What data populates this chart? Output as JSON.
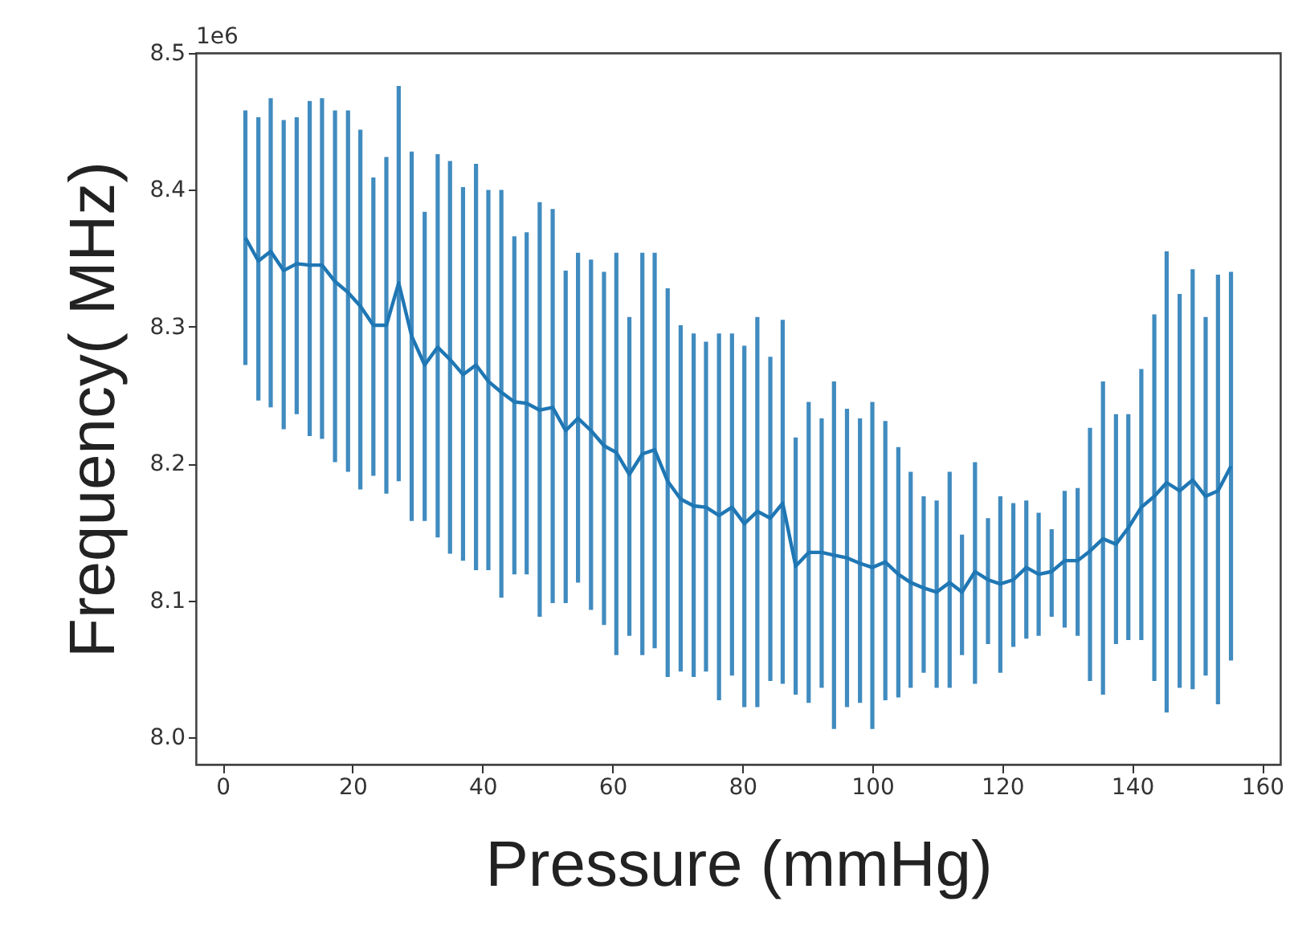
{
  "chart_data": {
    "type": "line",
    "xlabel": "Pressure (mmHg)",
    "ylabel": "Frequency( MHz)",
    "annotations": [
      "1e6"
    ],
    "x": [
      3.5,
      5.5,
      7.4,
      9.4,
      11.4,
      13.4,
      15.3,
      17.3,
      19.3,
      21.2,
      23.2,
      25.2,
      27.1,
      29.1,
      31.1,
      33.1,
      35.0,
      37.0,
      39.0,
      40.9,
      42.9,
      44.9,
      46.8,
      48.8,
      50.8,
      52.8,
      54.7,
      56.7,
      58.7,
      60.6,
      62.6,
      64.6,
      66.5,
      68.5,
      70.5,
      72.5,
      74.4,
      76.4,
      78.4,
      80.3,
      82.3,
      84.3,
      86.2,
      88.2,
      90.2,
      92.2,
      94.1,
      96.1,
      98.1,
      100.0,
      102.0,
      104.0,
      105.9,
      107.9,
      109.9,
      111.9,
      113.8,
      115.8,
      117.8,
      119.7,
      121.7,
      123.7,
      125.6,
      127.6,
      129.6,
      131.6,
      133.5,
      135.5,
      137.5,
      139.4,
      141.4,
      143.4,
      145.3,
      147.3,
      149.3,
      151.3,
      153.2,
      155.2
    ],
    "series": [
      {
        "color": "#1f77b4",
        "values": [
          8.365,
          8.348,
          8.355,
          8.341,
          8.346,
          8.345,
          8.345,
          8.333,
          8.325,
          8.315,
          8.301,
          8.301,
          8.332,
          8.293,
          8.272,
          8.285,
          8.276,
          8.265,
          8.272,
          8.26,
          8.252,
          8.245,
          8.244,
          8.239,
          8.241,
          8.224,
          8.233,
          8.224,
          8.213,
          8.208,
          8.192,
          8.207,
          8.21,
          8.187,
          8.174,
          8.169,
          8.168,
          8.162,
          8.168,
          8.156,
          8.165,
          8.16,
          8.171,
          8.125,
          8.135,
          8.135,
          8.133,
          8.131,
          8.127,
          8.124,
          8.128,
          8.119,
          8.113,
          8.109,
          8.106,
          8.113,
          8.106,
          8.121,
          8.115,
          8.112,
          8.115,
          8.124,
          8.119,
          8.121,
          8.129,
          8.129,
          8.136,
          8.145,
          8.141,
          8.153,
          8.168,
          8.176,
          8.186,
          8.18,
          8.188,
          8.176,
          8.18,
          8.198
        ],
        "errors": [
          [
            8.272,
            8.458
          ],
          [
            8.246,
            8.453
          ],
          [
            8.241,
            8.467
          ],
          [
            8.225,
            8.451
          ],
          [
            8.236,
            8.453
          ],
          [
            8.22,
            8.465
          ],
          [
            8.218,
            8.467
          ],
          [
            8.201,
            8.458
          ],
          [
            8.194,
            8.458
          ],
          [
            8.181,
            8.444
          ],
          [
            8.191,
            8.409
          ],
          [
            8.178,
            8.424
          ],
          [
            8.187,
            8.476
          ],
          [
            8.158,
            8.428
          ],
          [
            8.158,
            8.384
          ],
          [
            8.146,
            8.426
          ],
          [
            8.134,
            8.421
          ],
          [
            8.129,
            8.402
          ],
          [
            8.122,
            8.419
          ],
          [
            8.122,
            8.4
          ],
          [
            8.102,
            8.4
          ],
          [
            8.119,
            8.366
          ],
          [
            8.119,
            8.369
          ],
          [
            8.088,
            8.391
          ],
          [
            8.098,
            8.386
          ],
          [
            8.098,
            8.341
          ],
          [
            8.113,
            8.354
          ],
          [
            8.093,
            8.349
          ],
          [
            8.082,
            8.34
          ],
          [
            8.06,
            8.354
          ],
          [
            8.074,
            8.307
          ],
          [
            8.06,
            8.354
          ],
          [
            8.065,
            8.354
          ],
          [
            8.044,
            8.328
          ],
          [
            8.048,
            8.301
          ],
          [
            8.044,
            8.295
          ],
          [
            8.048,
            8.289
          ],
          [
            8.027,
            8.295
          ],
          [
            8.045,
            8.295
          ],
          [
            8.022,
            8.286
          ],
          [
            8.022,
            8.307
          ],
          [
            8.041,
            8.278
          ],
          [
            8.039,
            8.305
          ],
          [
            8.031,
            8.219
          ],
          [
            8.025,
            8.245
          ],
          [
            8.036,
            8.233
          ],
          [
            8.006,
            8.26
          ],
          [
            8.022,
            8.24
          ],
          [
            8.025,
            8.233
          ],
          [
            8.006,
            8.245
          ],
          [
            8.027,
            8.231
          ],
          [
            8.029,
            8.212
          ],
          [
            8.036,
            8.194
          ],
          [
            8.047,
            8.176
          ],
          [
            8.036,
            8.173
          ],
          [
            8.036,
            8.194
          ],
          [
            8.06,
            8.148
          ],
          [
            8.039,
            8.201
          ],
          [
            8.068,
            8.16
          ],
          [
            8.047,
            8.176
          ],
          [
            8.066,
            8.171
          ],
          [
            8.072,
            8.173
          ],
          [
            8.074,
            8.164
          ],
          [
            8.088,
            8.152
          ],
          [
            8.08,
            8.18
          ],
          [
            8.074,
            8.182
          ],
          [
            8.041,
            8.226
          ],
          [
            8.031,
            8.26
          ],
          [
            8.068,
            8.236
          ],
          [
            8.071,
            8.236
          ],
          [
            8.071,
            8.269
          ],
          [
            8.041,
            8.309
          ],
          [
            8.018,
            8.355
          ],
          [
            8.036,
            8.324
          ],
          [
            8.035,
            8.342
          ],
          [
            8.045,
            8.307
          ],
          [
            8.024,
            8.338
          ],
          [
            8.056,
            8.34
          ]
        ]
      }
    ],
    "xlim": [
      -4.1,
      162.8
    ],
    "xticks": [
      0,
      20,
      40,
      60,
      80,
      100,
      120,
      140,
      160
    ],
    "ylim": [
      7.98,
      8.5
    ],
    "yticks": [
      {
        "value": 8,
        "label": "8.0"
      },
      8.1,
      8.2,
      8.3,
      8.4,
      8.5
    ]
  }
}
